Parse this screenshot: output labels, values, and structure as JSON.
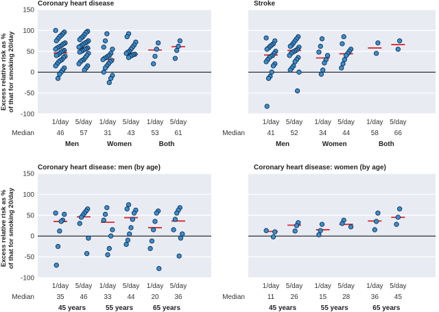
{
  "y_axis_label": [
    "Excess relative risk as %",
    "of that for smoking 20/day"
  ],
  "median_label": "Median",
  "colors": {
    "panel_bg": "#e9ebf3",
    "grid": "#ffffff",
    "zero_line": "#000000",
    "point_fill": "#3a8fcf",
    "point_stroke": "#0d2b4a",
    "median_line": "#d7282f"
  },
  "chart_data": [
    {
      "type": "scatter",
      "title": "Coronary heart disease",
      "ylim": [
        -100,
        150
      ],
      "yticks": [
        -100,
        -50,
        0,
        50,
        100,
        150
      ],
      "groups": [
        {
          "name": "Men",
          "categories": [
            {
              "label": "1/day",
              "median": 46,
              "values": [
                100,
                96,
                92,
                88,
                85,
                80,
                75,
                70,
                68,
                65,
                62,
                60,
                58,
                55,
                52,
                50,
                48,
                45,
                42,
                40,
                38,
                35,
                30,
                28,
                25,
                20,
                15,
                10,
                5,
                0,
                -5,
                -15
              ]
            },
            {
              "label": "5/day",
              "median": 57,
              "values": [
                98,
                95,
                90,
                85,
                82,
                78,
                75,
                72,
                70,
                68,
                65,
                62,
                60,
                58,
                56,
                55,
                52,
                50,
                48,
                45,
                40,
                35,
                30,
                28,
                25,
                20,
                15,
                10,
                5
              ]
            }
          ]
        },
        {
          "name": "Women",
          "categories": [
            {
              "label": "1/day",
              "median": 31,
              "values": [
                92,
                75,
                60,
                55,
                45,
                40,
                38,
                35,
                33,
                30,
                28,
                25,
                20,
                15,
                10,
                0,
                -8,
                -15,
                -25
              ]
            },
            {
              "label": "5/day",
              "median": 43,
              "values": [
                92,
                85,
                72,
                65,
                60,
                55,
                50,
                48,
                45,
                43,
                42,
                40,
                38,
                35
              ]
            }
          ]
        },
        {
          "name": "Both",
          "categories": [
            {
              "label": "1/day",
              "median": 53,
              "values": [
                70,
                55,
                38,
                20
              ]
            },
            {
              "label": "5/day",
              "median": 61,
              "values": [
                75,
                62,
                52,
                33
              ]
            }
          ]
        }
      ]
    },
    {
      "type": "scatter",
      "title": "Stroke",
      "ylim": [
        -100,
        150
      ],
      "yticks": [
        -100,
        -50,
        0,
        50,
        100,
        150
      ],
      "groups": [
        {
          "name": "Men",
          "categories": [
            {
              "label": "1/day",
              "median": 41,
              "values": [
                82,
                75,
                68,
                65,
                62,
                58,
                55,
                50,
                45,
                40,
                38,
                35,
                30,
                25,
                20,
                15,
                0,
                -10,
                -15,
                -82
              ]
            },
            {
              "label": "5/day",
              "median": 52,
              "values": [
                85,
                80,
                75,
                70,
                65,
                62,
                60,
                55,
                52,
                50,
                48,
                45,
                40,
                35,
                30,
                25,
                15,
                10,
                5,
                0,
                -45
              ]
            }
          ]
        },
        {
          "name": "Women",
          "categories": [
            {
              "label": "1/day",
              "median": 34,
              "values": [
                80,
                62,
                48,
                40,
                30,
                22,
                5,
                -5
              ]
            },
            {
              "label": "5/day",
              "median": 44,
              "values": [
                85,
                68,
                55,
                50,
                45,
                40,
                30,
                20,
                10
              ]
            }
          ]
        },
        {
          "name": "Both",
          "categories": [
            {
              "label": "1/day",
              "median": 58,
              "values": [
                70,
                45
              ]
            },
            {
              "label": "5/day",
              "median": 66,
              "values": [
                75,
                55
              ]
            }
          ]
        }
      ]
    },
    {
      "type": "scatter",
      "title": "Coronary heart disease: men (by age)",
      "ylim": [
        -100,
        150
      ],
      "yticks": [
        -100,
        -50,
        0,
        50,
        100,
        150
      ],
      "groups": [
        {
          "name": "45 years",
          "categories": [
            {
              "label": "1/day",
              "median": 35,
              "values": [
                55,
                52,
                38,
                35,
                12,
                -25,
                -70
              ]
            },
            {
              "label": "5/day",
              "median": 46,
              "values": [
                65,
                60,
                55,
                50,
                45,
                30,
                -5,
                -42
              ]
            }
          ]
        },
        {
          "name": "55 years",
          "categories": [
            {
              "label": "1/day",
              "median": 33,
              "values": [
                68,
                52,
                38,
                15,
                0,
                -30,
                -45
              ]
            },
            {
              "label": "5/day",
              "median": 44,
              "values": [
                75,
                65,
                62,
                55,
                40,
                20,
                5,
                -10,
                -20
              ]
            }
          ]
        },
        {
          "name": "65 years",
          "categories": [
            {
              "label": "1/day",
              "median": 20,
              "values": [
                60,
                55,
                35,
                15,
                -12,
                -30,
                -78
              ]
            },
            {
              "label": "5/day",
              "median": 36,
              "values": [
                68,
                62,
                55,
                40,
                15,
                5,
                -5,
                -48
              ]
            }
          ]
        }
      ]
    },
    {
      "type": "scatter",
      "title": "Coronary heart disease: women (by age)",
      "ylim": [
        -100,
        150
      ],
      "yticks": [
        -100,
        -50,
        0,
        50,
        100,
        150
      ],
      "groups": [
        {
          "name": "45 years",
          "categories": [
            {
              "label": "1/day",
              "median": 11,
              "values": [
                13,
                10,
                -2
              ]
            },
            {
              "label": "5/day",
              "median": 26,
              "values": [
                32,
                25,
                12
              ]
            }
          ]
        },
        {
          "name": "55 years",
          "categories": [
            {
              "label": "1/day",
              "median": 15,
              "values": [
                28,
                13,
                3
              ]
            },
            {
              "label": "5/day",
              "median": 28,
              "values": [
                38,
                30,
                22
              ]
            }
          ]
        },
        {
          "name": "65 years",
          "categories": [
            {
              "label": "1/day",
              "median": 36,
              "values": [
                55,
                35,
                15
              ]
            },
            {
              "label": "5/day",
              "median": 45,
              "values": [
                65,
                45,
                28
              ]
            }
          ]
        }
      ]
    }
  ]
}
